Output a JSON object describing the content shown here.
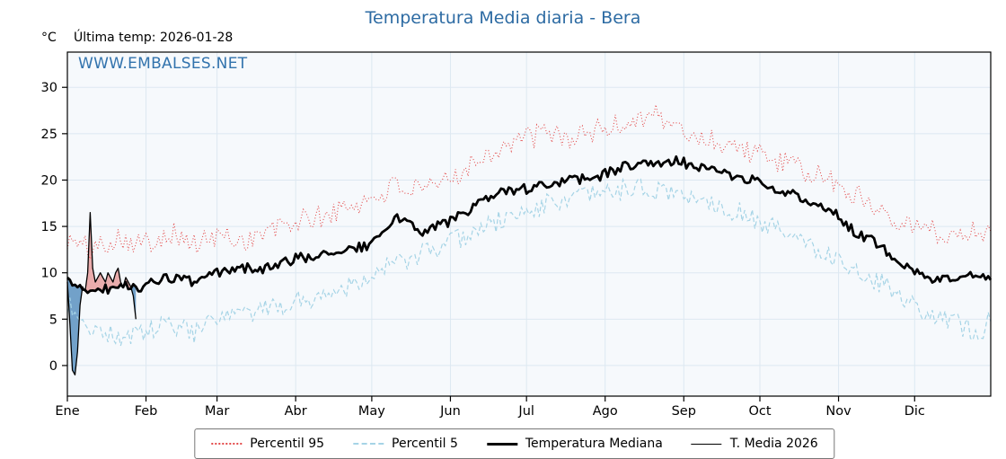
{
  "title": "Temperatura Media diaria - Bera",
  "y_unit": "°C",
  "last_temp": "Última temp: 2026-01-28",
  "watermark": "WWW.EMBALSES.NET",
  "colors": {
    "title": "#2d6ba3",
    "watermark": "#3273ad",
    "p95": "#e34a4a",
    "p5": "#a6d4e6",
    "median": "#000000",
    "t2026": "#000000",
    "fill_above": "#e9a3a3",
    "fill_below": "#5b92bf",
    "plot_bg": "#f6f9fc",
    "grid": "#dde8f1",
    "frame": "#000000"
  },
  "legend": [
    {
      "label": "Percentil 95"
    },
    {
      "label": "Percentil 5"
    },
    {
      "label": "Temperatura Mediana"
    },
    {
      "label": "T. Media 2026"
    }
  ],
  "axes": {
    "y_ticks": [
      0,
      5,
      10,
      15,
      20,
      25,
      30
    ],
    "y_min": -3.3,
    "y_max": 33.8,
    "x_months": [
      "Ene",
      "Feb",
      "Mar",
      "Abr",
      "May",
      "Jun",
      "Jul",
      "Ago",
      "Sep",
      "Oct",
      "Nov",
      "Dic"
    ],
    "month_start_days": [
      1,
      32,
      60,
      91,
      121,
      152,
      182,
      213,
      244,
      274,
      305,
      335
    ],
    "days_in_year": 365,
    "grid": true
  },
  "chart_data": {
    "type": "line",
    "x_unit": "day_of_year",
    "note": "series values estimated from plot every ~10 days; T. Media 2026 is daily for Jan 1-28",
    "anchor_days": [
      1,
      11,
      21,
      31,
      41,
      51,
      61,
      71,
      81,
      91,
      101,
      111,
      121,
      131,
      141,
      151,
      161,
      171,
      181,
      191,
      201,
      211,
      221,
      231,
      241,
      251,
      261,
      271,
      281,
      291,
      301,
      311,
      321,
      331,
      341,
      351,
      361,
      365
    ],
    "series": [
      {
        "name": "Percentil 95",
        "values": [
          13.5,
          12.5,
          14,
          13,
          14.5,
          13,
          14,
          13.5,
          14.5,
          15.5,
          16,
          17,
          18,
          19.5,
          18.5,
          20,
          22,
          23.5,
          24.5,
          25,
          24.5,
          25.5,
          26,
          27.5,
          25.5,
          24.5,
          24,
          23,
          22,
          21,
          20,
          18.5,
          17,
          15.5,
          14.5,
          14,
          15,
          13.5
        ]
      },
      {
        "name": "Percentil 5",
        "values": [
          6.5,
          4,
          3,
          3.5,
          4.5,
          3.5,
          5,
          5.5,
          6,
          7,
          7.5,
          8.5,
          10,
          11,
          12,
          13,
          14.5,
          15.5,
          16.5,
          17.5,
          18,
          18.5,
          19,
          19,
          18.5,
          18,
          17,
          16,
          14.5,
          13.5,
          12,
          10.5,
          9,
          7,
          5.5,
          4.5,
          3.5,
          5.5
        ]
      },
      {
        "name": "Temperatura Mediana",
        "values": [
          9,
          8,
          8.5,
          8.5,
          9.5,
          9,
          10,
          10.5,
          10.5,
          11.5,
          12,
          12.5,
          13,
          16,
          14.5,
          15.5,
          17,
          18.5,
          19,
          19.5,
          20,
          20.5,
          21.5,
          22,
          22,
          21.5,
          20.5,
          20,
          19,
          18,
          17,
          14.5,
          13,
          11,
          9.5,
          9,
          10,
          9
        ]
      }
    ],
    "t_media_2026": {
      "name": "T. Media 2026",
      "days": [
        1,
        2,
        3,
        4,
        5,
        6,
        7,
        8,
        9,
        10,
        11,
        12,
        13,
        14,
        15,
        16,
        17,
        18,
        19,
        20,
        21,
        22,
        23,
        24,
        25,
        26,
        27,
        28
      ],
      "values": [
        9,
        4.5,
        -0.5,
        -1,
        1.5,
        6.5,
        8.5,
        8,
        10,
        16.5,
        10.5,
        9,
        9.5,
        10,
        9.5,
        9,
        10,
        9.5,
        9,
        10,
        10.5,
        9,
        8.5,
        9.5,
        9,
        8.5,
        7.5,
        5
      ]
    }
  }
}
